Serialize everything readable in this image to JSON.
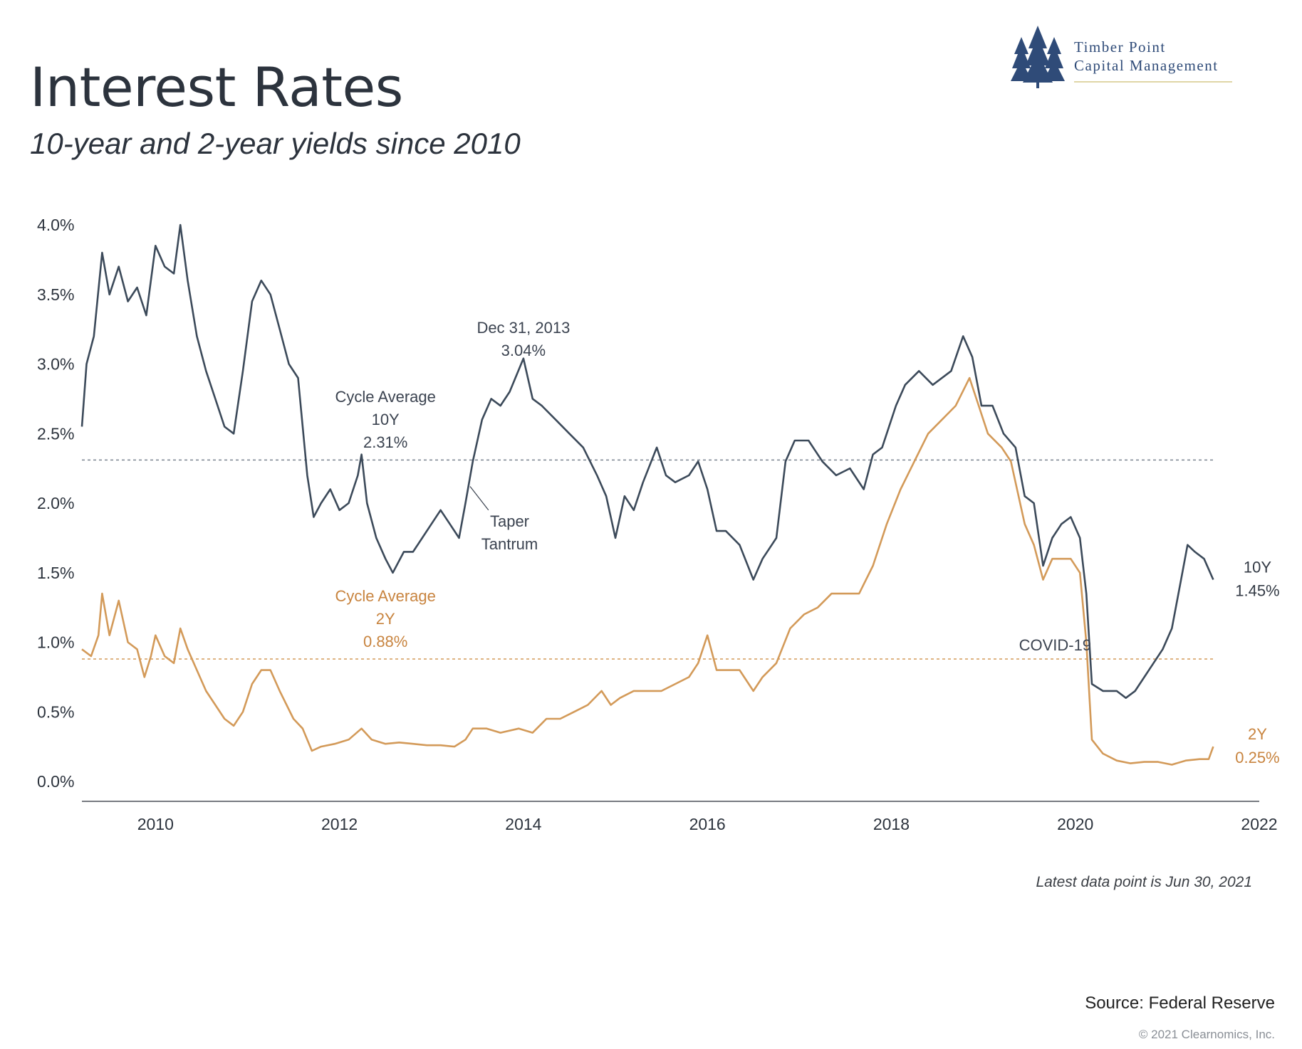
{
  "header": {
    "title": "Interest Rates",
    "subtitle": "10-year and 2-year yields since 2010"
  },
  "logo": {
    "line1": "Timber Point",
    "line2": "Capital Management",
    "icon": "pine-trees-icon",
    "color": "#2f4b78"
  },
  "footer": {
    "note": "Latest data point is Jun 30, 2021",
    "source": "Source: Federal Reserve",
    "copyright": "© 2021 Clearnomics, Inc."
  },
  "chart_data": {
    "type": "line",
    "title": "",
    "xlabel": "",
    "ylabel": "",
    "xlim": [
      2009.2,
      2022.0
    ],
    "ylim": [
      0.0,
      4.0
    ],
    "x_ticks": [
      2010,
      2012,
      2014,
      2016,
      2018,
      2020,
      2022
    ],
    "y_ticks": [
      0.0,
      0.5,
      1.0,
      1.5,
      2.0,
      2.5,
      3.0,
      3.5,
      4.0
    ],
    "y_tick_labels": [
      "0.0%",
      "0.5%",
      "1.0%",
      "1.5%",
      "2.0%",
      "2.5%",
      "3.0%",
      "3.5%",
      "4.0%"
    ],
    "grid": false,
    "series": [
      {
        "name": "10Y",
        "color": "#3c4a5a",
        "end_label": "10Y",
        "end_value_label": "1.45%",
        "points": [
          [
            2009.2,
            2.55
          ],
          [
            2009.25,
            3.0
          ],
          [
            2009.33,
            3.2
          ],
          [
            2009.42,
            3.8
          ],
          [
            2009.5,
            3.5
          ],
          [
            2009.6,
            3.7
          ],
          [
            2009.7,
            3.45
          ],
          [
            2009.8,
            3.55
          ],
          [
            2009.9,
            3.35
          ],
          [
            2010.0,
            3.85
          ],
          [
            2010.1,
            3.7
          ],
          [
            2010.2,
            3.65
          ],
          [
            2010.27,
            4.0
          ],
          [
            2010.35,
            3.6
          ],
          [
            2010.45,
            3.2
          ],
          [
            2010.55,
            2.95
          ],
          [
            2010.65,
            2.75
          ],
          [
            2010.75,
            2.55
          ],
          [
            2010.85,
            2.5
          ],
          [
            2010.95,
            2.95
          ],
          [
            2011.05,
            3.45
          ],
          [
            2011.15,
            3.6
          ],
          [
            2011.25,
            3.5
          ],
          [
            2011.35,
            3.25
          ],
          [
            2011.45,
            3.0
          ],
          [
            2011.55,
            2.9
          ],
          [
            2011.65,
            2.2
          ],
          [
            2011.72,
            1.9
          ],
          [
            2011.8,
            2.0
          ],
          [
            2011.9,
            2.1
          ],
          [
            2012.0,
            1.95
          ],
          [
            2012.1,
            2.0
          ],
          [
            2012.2,
            2.2
          ],
          [
            2012.24,
            2.35
          ],
          [
            2012.3,
            2.0
          ],
          [
            2012.4,
            1.75
          ],
          [
            2012.5,
            1.6
          ],
          [
            2012.58,
            1.5
          ],
          [
            2012.7,
            1.65
          ],
          [
            2012.8,
            1.65
          ],
          [
            2012.9,
            1.75
          ],
          [
            2013.0,
            1.85
          ],
          [
            2013.1,
            1.95
          ],
          [
            2013.2,
            1.85
          ],
          [
            2013.3,
            1.75
          ],
          [
            2013.37,
            2.0
          ],
          [
            2013.45,
            2.3
          ],
          [
            2013.55,
            2.6
          ],
          [
            2013.65,
            2.75
          ],
          [
            2013.75,
            2.7
          ],
          [
            2013.85,
            2.8
          ],
          [
            2014.0,
            3.04
          ],
          [
            2014.1,
            2.75
          ],
          [
            2014.2,
            2.7
          ],
          [
            2014.35,
            2.6
          ],
          [
            2014.5,
            2.5
          ],
          [
            2014.65,
            2.4
          ],
          [
            2014.8,
            2.2
          ],
          [
            2014.9,
            2.05
          ],
          [
            2015.0,
            1.75
          ],
          [
            2015.1,
            2.05
          ],
          [
            2015.2,
            1.95
          ],
          [
            2015.3,
            2.15
          ],
          [
            2015.45,
            2.4
          ],
          [
            2015.55,
            2.2
          ],
          [
            2015.65,
            2.15
          ],
          [
            2015.8,
            2.2
          ],
          [
            2015.9,
            2.3
          ],
          [
            2016.0,
            2.1
          ],
          [
            2016.1,
            1.8
          ],
          [
            2016.2,
            1.8
          ],
          [
            2016.35,
            1.7
          ],
          [
            2016.5,
            1.45
          ],
          [
            2016.6,
            1.6
          ],
          [
            2016.75,
            1.75
          ],
          [
            2016.85,
            2.3
          ],
          [
            2016.95,
            2.45
          ],
          [
            2017.1,
            2.45
          ],
          [
            2017.25,
            2.3
          ],
          [
            2017.4,
            2.2
          ],
          [
            2017.55,
            2.25
          ],
          [
            2017.7,
            2.1
          ],
          [
            2017.8,
            2.35
          ],
          [
            2017.9,
            2.4
          ],
          [
            2018.05,
            2.7
          ],
          [
            2018.15,
            2.85
          ],
          [
            2018.3,
            2.95
          ],
          [
            2018.45,
            2.85
          ],
          [
            2018.55,
            2.9
          ],
          [
            2018.65,
            2.95
          ],
          [
            2018.78,
            3.2
          ],
          [
            2018.88,
            3.05
          ],
          [
            2018.98,
            2.7
          ],
          [
            2019.1,
            2.7
          ],
          [
            2019.22,
            2.5
          ],
          [
            2019.35,
            2.4
          ],
          [
            2019.45,
            2.05
          ],
          [
            2019.55,
            2.0
          ],
          [
            2019.65,
            1.55
          ],
          [
            2019.75,
            1.75
          ],
          [
            2019.85,
            1.85
          ],
          [
            2019.95,
            1.9
          ],
          [
            2020.05,
            1.75
          ],
          [
            2020.12,
            1.35
          ],
          [
            2020.18,
            0.7
          ],
          [
            2020.3,
            0.65
          ],
          [
            2020.45,
            0.65
          ],
          [
            2020.55,
            0.6
          ],
          [
            2020.65,
            0.65
          ],
          [
            2020.75,
            0.75
          ],
          [
            2020.85,
            0.85
          ],
          [
            2020.95,
            0.95
          ],
          [
            2021.05,
            1.1
          ],
          [
            2021.15,
            1.45
          ],
          [
            2021.22,
            1.7
          ],
          [
            2021.3,
            1.65
          ],
          [
            2021.4,
            1.6
          ],
          [
            2021.5,
            1.45
          ]
        ]
      },
      {
        "name": "2Y",
        "color": "#d39a59",
        "end_label": "2Y",
        "end_value_label": "0.25%",
        "points": [
          [
            2009.2,
            0.95
          ],
          [
            2009.3,
            0.9
          ],
          [
            2009.38,
            1.05
          ],
          [
            2009.42,
            1.35
          ],
          [
            2009.5,
            1.05
          ],
          [
            2009.6,
            1.3
          ],
          [
            2009.7,
            1.0
          ],
          [
            2009.8,
            0.95
          ],
          [
            2009.88,
            0.75
          ],
          [
            2009.95,
            0.9
          ],
          [
            2010.0,
            1.05
          ],
          [
            2010.1,
            0.9
          ],
          [
            2010.2,
            0.85
          ],
          [
            2010.27,
            1.1
          ],
          [
            2010.35,
            0.95
          ],
          [
            2010.45,
            0.8
          ],
          [
            2010.55,
            0.65
          ],
          [
            2010.65,
            0.55
          ],
          [
            2010.75,
            0.45
          ],
          [
            2010.85,
            0.4
          ],
          [
            2010.95,
            0.5
          ],
          [
            2011.05,
            0.7
          ],
          [
            2011.15,
            0.8
          ],
          [
            2011.25,
            0.8
          ],
          [
            2011.35,
            0.65
          ],
          [
            2011.5,
            0.45
          ],
          [
            2011.6,
            0.38
          ],
          [
            2011.7,
            0.22
          ],
          [
            2011.8,
            0.25
          ],
          [
            2011.95,
            0.27
          ],
          [
            2012.1,
            0.3
          ],
          [
            2012.24,
            0.38
          ],
          [
            2012.35,
            0.3
          ],
          [
            2012.5,
            0.27
          ],
          [
            2012.65,
            0.28
          ],
          [
            2012.8,
            0.27
          ],
          [
            2012.95,
            0.26
          ],
          [
            2013.1,
            0.26
          ],
          [
            2013.25,
            0.25
          ],
          [
            2013.37,
            0.3
          ],
          [
            2013.45,
            0.38
          ],
          [
            2013.6,
            0.38
          ],
          [
            2013.75,
            0.35
          ],
          [
            2013.95,
            0.38
          ],
          [
            2014.1,
            0.35
          ],
          [
            2014.25,
            0.45
          ],
          [
            2014.4,
            0.45
          ],
          [
            2014.55,
            0.5
          ],
          [
            2014.7,
            0.55
          ],
          [
            2014.85,
            0.65
          ],
          [
            2014.95,
            0.55
          ],
          [
            2015.05,
            0.6
          ],
          [
            2015.2,
            0.65
          ],
          [
            2015.35,
            0.65
          ],
          [
            2015.5,
            0.65
          ],
          [
            2015.65,
            0.7
          ],
          [
            2015.8,
            0.75
          ],
          [
            2015.9,
            0.85
          ],
          [
            2016.0,
            1.05
          ],
          [
            2016.1,
            0.8
          ],
          [
            2016.2,
            0.8
          ],
          [
            2016.35,
            0.8
          ],
          [
            2016.5,
            0.65
          ],
          [
            2016.6,
            0.75
          ],
          [
            2016.75,
            0.85
          ],
          [
            2016.9,
            1.1
          ],
          [
            2017.05,
            1.2
          ],
          [
            2017.2,
            1.25
          ],
          [
            2017.35,
            1.35
          ],
          [
            2017.5,
            1.35
          ],
          [
            2017.65,
            1.35
          ],
          [
            2017.8,
            1.55
          ],
          [
            2017.95,
            1.85
          ],
          [
            2018.1,
            2.1
          ],
          [
            2018.25,
            2.3
          ],
          [
            2018.4,
            2.5
          ],
          [
            2018.55,
            2.6
          ],
          [
            2018.7,
            2.7
          ],
          [
            2018.85,
            2.9
          ],
          [
            2018.95,
            2.7
          ],
          [
            2019.05,
            2.5
          ],
          [
            2019.2,
            2.4
          ],
          [
            2019.3,
            2.3
          ],
          [
            2019.45,
            1.85
          ],
          [
            2019.55,
            1.7
          ],
          [
            2019.65,
            1.45
          ],
          [
            2019.75,
            1.6
          ],
          [
            2019.85,
            1.6
          ],
          [
            2019.95,
            1.6
          ],
          [
            2020.05,
            1.5
          ],
          [
            2020.12,
            1.0
          ],
          [
            2020.18,
            0.3
          ],
          [
            2020.3,
            0.2
          ],
          [
            2020.45,
            0.15
          ],
          [
            2020.6,
            0.13
          ],
          [
            2020.75,
            0.14
          ],
          [
            2020.9,
            0.14
          ],
          [
            2021.05,
            0.12
          ],
          [
            2021.2,
            0.15
          ],
          [
            2021.35,
            0.16
          ],
          [
            2021.45,
            0.16
          ],
          [
            2021.5,
            0.25
          ]
        ]
      }
    ],
    "reference_lines": [
      {
        "value": 2.31,
        "color": "#7a8390"
      },
      {
        "value": 0.88,
        "color": "#d39a59"
      }
    ],
    "annotations": [
      {
        "lines": [
          "Cycle Average",
          "10Y",
          "2.31%"
        ],
        "x": 2012.5,
        "color": "#3b4350"
      },
      {
        "lines": [
          "Cycle Average",
          "2Y",
          "0.88%"
        ],
        "x": 2012.5,
        "color": "#c8843f"
      },
      {
        "lines": [
          "Dec 31, 2013",
          "3.04%"
        ],
        "x": 2014.0,
        "color": "#3b4350"
      },
      {
        "lines": [
          "Taper",
          "Tantrum"
        ],
        "x": 2013.85,
        "color": "#3b4350"
      },
      {
        "lines": [
          "COVID-19"
        ],
        "x": 2019.78,
        "color": "#3b4350"
      }
    ]
  }
}
